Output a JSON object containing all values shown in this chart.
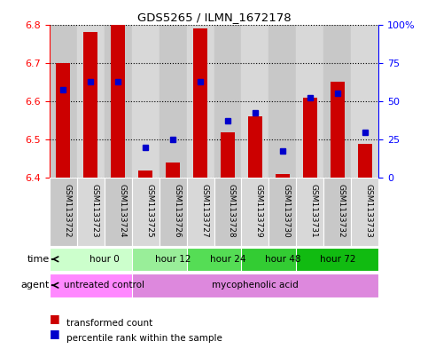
{
  "title": "GDS5265 / ILMN_1672178",
  "samples": [
    "GSM1133722",
    "GSM1133723",
    "GSM1133724",
    "GSM1133725",
    "GSM1133726",
    "GSM1133727",
    "GSM1133728",
    "GSM1133729",
    "GSM1133730",
    "GSM1133731",
    "GSM1133732",
    "GSM1133733"
  ],
  "bar_tops": [
    6.7,
    6.78,
    6.8,
    6.42,
    6.44,
    6.79,
    6.52,
    6.56,
    6.41,
    6.61,
    6.65,
    6.49
  ],
  "bar_base": 6.4,
  "percentile_values": [
    6.63,
    6.65,
    6.65,
    6.48,
    6.5,
    6.65,
    6.55,
    6.57,
    6.47,
    6.61,
    6.62,
    6.52
  ],
  "ylim": [
    6.4,
    6.8
  ],
  "yticks": [
    6.4,
    6.5,
    6.6,
    6.7,
    6.8
  ],
  "right_yticks": [
    0,
    25,
    50,
    75,
    100
  ],
  "right_ylabels": [
    "0",
    "25",
    "50",
    "75",
    "100%"
  ],
  "bar_color": "#cc0000",
  "percentile_color": "#0000cc",
  "time_groups": [
    {
      "label": "hour 0",
      "start": 0,
      "end": 3,
      "color": "#ccffcc"
    },
    {
      "label": "hour 12",
      "start": 3,
      "end": 5,
      "color": "#99ee99"
    },
    {
      "label": "hour 24",
      "start": 5,
      "end": 7,
      "color": "#55dd55"
    },
    {
      "label": "hour 48",
      "start": 7,
      "end": 9,
      "color": "#33cc33"
    },
    {
      "label": "hour 72",
      "start": 9,
      "end": 11,
      "color": "#11bb11"
    }
  ],
  "agent_groups": [
    {
      "label": "untreated control",
      "start": 0,
      "end": 3,
      "color": "#ff88ff"
    },
    {
      "label": "mycophenolic acid",
      "start": 3,
      "end": 11,
      "color": "#dd88dd"
    }
  ],
  "sample_col_colors": [
    "#c8c8c8",
    "#d8d8d8"
  ],
  "legend_red_label": "transformed count",
  "legend_blue_label": "percentile rank within the sample",
  "time_label": "time",
  "agent_label": "agent"
}
